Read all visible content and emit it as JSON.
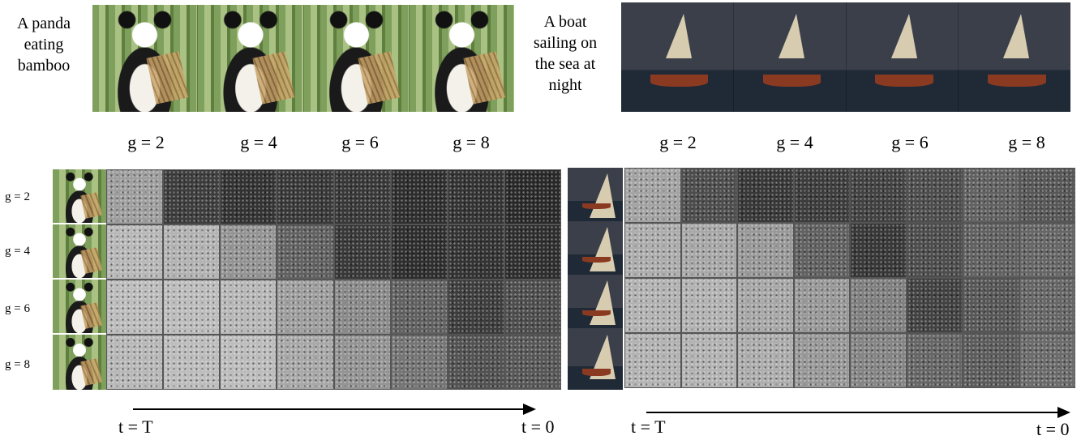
{
  "left": {
    "prompt": [
      "A panda",
      "eating",
      "bamboo"
    ],
    "strip_labels": [
      "g = 2",
      "g = 4",
      "g = 6",
      "g = 8"
    ],
    "row_labels": [
      "g = 2",
      "g = 4",
      "g = 6",
      "g = 8"
    ],
    "t_start": "t = T",
    "t_end": "t = 0"
  },
  "right": {
    "prompt": [
      "A boat",
      "sailing on",
      "the sea at",
      "night"
    ],
    "strip_labels": [
      "g = 2",
      "g = 4",
      "g = 6",
      "g = 8"
    ],
    "t_start": "t = T",
    "t_end": "t = 0"
  },
  "noise_brightness": {
    "left": [
      [
        0.62,
        0.24,
        0.2,
        0.22,
        0.22,
        0.18,
        0.2,
        0.16
      ],
      [
        0.72,
        0.7,
        0.58,
        0.38,
        0.22,
        0.18,
        0.2,
        0.18
      ],
      [
        0.74,
        0.74,
        0.72,
        0.62,
        0.54,
        0.38,
        0.24,
        0.3
      ],
      [
        0.72,
        0.74,
        0.74,
        0.66,
        0.58,
        0.46,
        0.32,
        0.34
      ]
    ],
    "right": [
      [
        0.64,
        0.3,
        0.22,
        0.24,
        0.26,
        0.3,
        0.38,
        0.34
      ],
      [
        0.68,
        0.66,
        0.6,
        0.38,
        0.22,
        0.3,
        0.38,
        0.4
      ],
      [
        0.7,
        0.7,
        0.66,
        0.6,
        0.5,
        0.26,
        0.34,
        0.4
      ],
      [
        0.7,
        0.7,
        0.68,
        0.6,
        0.52,
        0.4,
        0.36,
        0.42
      ]
    ]
  }
}
